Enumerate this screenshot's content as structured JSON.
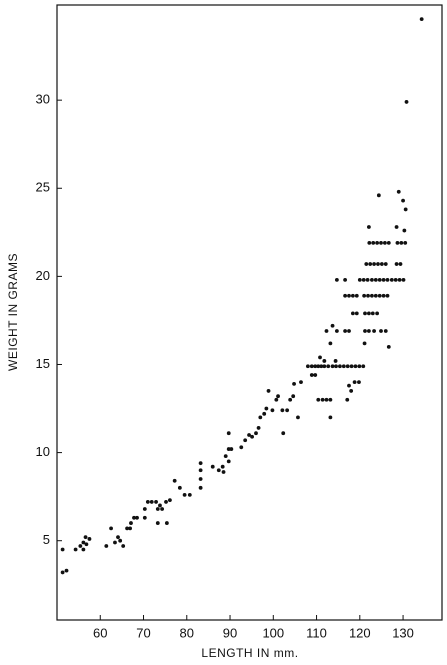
{
  "chart_data": {
    "type": "scatter",
    "x_label": "LENGTH IN mm.",
    "y_label": "WEIGHT IN GRAMS",
    "color": "#111111",
    "xlim": [
      50,
      139
    ],
    "ylim": [
      0.5,
      35.4
    ],
    "xticks": [
      60,
      70,
      80,
      90,
      100,
      110,
      120,
      130
    ],
    "yticks": [
      5,
      10,
      15,
      20,
      25,
      30
    ],
    "x": [
      51.3,
      52.2,
      51.3,
      54.3,
      55.4,
      56.1,
      56.1,
      56.6,
      57.5,
      56.8,
      61.4,
      62.5,
      63.4,
      64.1,
      64.6,
      65.3,
      66.2,
      67.1,
      67.8,
      68.5,
      66.9,
      70.3,
      70.3,
      71.0,
      71.9,
      72.9,
      73.3,
      73.8,
      74.3,
      73.3,
      75.4,
      75.2,
      76.1,
      77.2,
      78.4,
      79.5,
      80.7,
      83.2,
      83.2,
      83.2,
      83.2,
      86.0,
      87.4,
      88.3,
      89.0,
      89.7,
      89.7,
      90.3,
      89.7,
      88.5,
      92.6,
      93.5,
      94.4,
      95.1,
      96.0,
      96.6,
      97.0,
      97.9,
      98.4,
      98.9,
      99.8,
      100.7,
      101.1,
      102.1,
      102.3,
      103.2,
      103.9,
      104.6,
      104.8,
      105.7,
      106.4,
      108.0,
      108.9,
      109.7,
      110.4,
      111.1,
      111.8,
      112.7,
      114.5,
      115.4,
      116.3,
      117.2,
      118.1,
      119.0,
      119.9,
      120.8,
      113.7,
      108.9,
      109.7,
      110.8,
      111.8,
      110.4,
      111.4,
      112.3,
      113.2,
      113.2,
      112.3,
      113.2,
      113.7,
      114.4,
      114.7,
      116.6,
      114.7,
      116.6,
      117.5,
      116.6,
      117.5,
      118.4,
      119.3,
      118.4,
      119.3,
      117.5,
      118.8,
      119.8,
      117.1,
      118.0,
      120.0,
      120.9,
      121.8,
      122.8,
      123.7,
      124.6,
      125.5,
      126.4,
      127.4,
      128.3,
      129.2,
      130.1,
      121.5,
      122.4,
      123.3,
      124.2,
      125.1,
      126.0,
      122.2,
      123.1,
      124.0,
      124.9,
      125.8,
      126.7,
      128.7,
      129.6,
      130.5,
      121.0,
      121.9,
      122.8,
      123.7,
      124.6,
      125.5,
      126.4,
      121.2,
      122.1,
      123.0,
      124.0,
      121.2,
      122.1,
      123.3,
      124.9,
      126.0,
      121.1,
      122.1,
      124.4,
      126.7,
      128.5,
      129.0,
      130.0,
      130.6,
      130.3,
      128.5,
      129.4,
      130.8,
      134.3
    ],
    "values": [
      3.2,
      3.3,
      4.5,
      4.5,
      4.7,
      4.9,
      4.5,
      5.2,
      5.1,
      4.8,
      4.7,
      5.7,
      4.9,
      5.2,
      5.0,
      4.7,
      5.7,
      6.0,
      6.3,
      6.3,
      5.7,
      6.3,
      6.8,
      7.2,
      7.2,
      7.2,
      6.8,
      7.0,
      6.8,
      6.0,
      6.0,
      7.2,
      7.3,
      8.4,
      8.0,
      7.6,
      7.6,
      9.4,
      9.0,
      8.5,
      8.0,
      9.2,
      9.0,
      9.2,
      9.8,
      10.2,
      11.1,
      10.2,
      9.5,
      8.9,
      10.3,
      10.7,
      11.0,
      10.9,
      11.1,
      11.4,
      12.0,
      12.2,
      12.5,
      13.5,
      12.4,
      13.0,
      13.2,
      12.4,
      11.1,
      12.4,
      13.0,
      13.2,
      13.9,
      12.0,
      14.0,
      14.9,
      14.9,
      14.9,
      14.9,
      14.9,
      14.9,
      14.9,
      14.9,
      14.9,
      14.9,
      14.9,
      14.9,
      14.9,
      14.9,
      14.9,
      14.9,
      14.4,
      14.4,
      15.4,
      15.2,
      13.0,
      13.0,
      13.0,
      13.0,
      12.0,
      16.9,
      16.2,
      17.2,
      15.2,
      19.8,
      19.8,
      16.9,
      16.9,
      16.9,
      18.9,
      18.9,
      18.9,
      18.9,
      17.9,
      17.9,
      13.8,
      14.0,
      14.0,
      13.0,
      13.5,
      19.8,
      19.8,
      19.8,
      19.8,
      19.8,
      19.8,
      19.8,
      19.8,
      19.8,
      19.8,
      19.8,
      19.8,
      20.7,
      20.7,
      20.7,
      20.7,
      20.7,
      20.7,
      21.9,
      21.9,
      21.9,
      21.9,
      21.9,
      21.9,
      21.9,
      21.9,
      21.9,
      18.9,
      18.9,
      18.9,
      18.9,
      18.9,
      18.9,
      18.9,
      17.9,
      17.9,
      17.9,
      17.9,
      16.9,
      16.9,
      16.9,
      16.9,
      16.9,
      16.2,
      22.8,
      24.6,
      16.0,
      22.8,
      24.8,
      24.3,
      23.8,
      22.6,
      20.7,
      20.7,
      29.9,
      34.6
    ]
  }
}
